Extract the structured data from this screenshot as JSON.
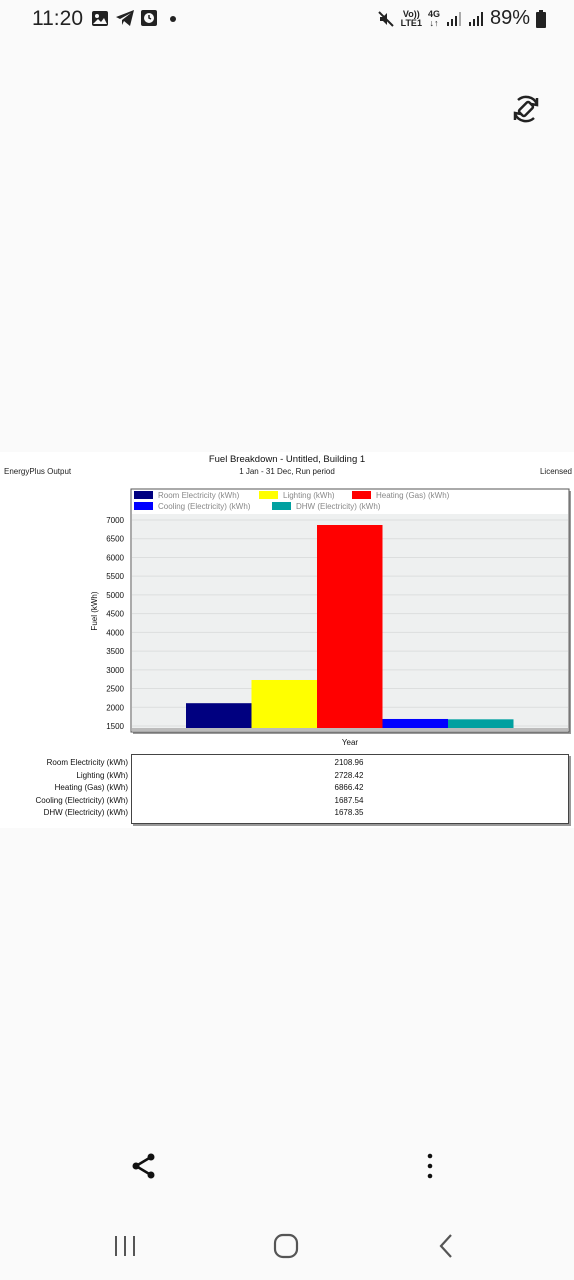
{
  "status_bar": {
    "time": "11:20",
    "network_label_top": "Vo))",
    "network_label_bottom": "LTE1",
    "network_type": "4G",
    "battery": "89%",
    "icons": [
      "gallery-icon",
      "telegram-icon",
      "clock-app-icon",
      "dot-icon",
      "mute-icon",
      "signal-icon",
      "signal-icon",
      "battery-icon"
    ]
  },
  "chart_header": {
    "title": "Fuel Breakdown - Untitled, Building 1",
    "subtitle": "1 Jan - 31 Dec, Run period",
    "left_label": "EnergyPlus Output",
    "right_label": "Licensed"
  },
  "chart_data": {
    "type": "bar",
    "title": "Fuel Breakdown - Untitled, Building 1",
    "subtitle": "1 Jan - 31 Dec, Run period",
    "xlabel": "Year",
    "ylabel": "Fuel (kWh)",
    "ylim": [
      1500,
      7000
    ],
    "yticks": [
      1500,
      2000,
      2500,
      3000,
      3500,
      4000,
      4500,
      5000,
      5500,
      6000,
      6500,
      7000
    ],
    "grid": true,
    "legend_position": "top",
    "series": [
      {
        "name": "Room Electricity (kWh)",
        "value": 2108.96,
        "color": "#000080"
      },
      {
        "name": "Lighting (kWh)",
        "value": 2728.42,
        "color": "#ffff00"
      },
      {
        "name": "Heating (Gas) (kWh)",
        "value": 6866.42,
        "color": "#ff0000"
      },
      {
        "name": "Cooling (Electricity) (kWh)",
        "value": 1687.54,
        "color": "#0000ff"
      },
      {
        "name": "DHW (Electricity) (kWh)",
        "value": 1678.35,
        "color": "#00a0a0"
      }
    ]
  },
  "table": {
    "rows": [
      {
        "label": "Room Electricity (kWh)",
        "value": "2108.96"
      },
      {
        "label": "Lighting (kWh)",
        "value": "2728.42"
      },
      {
        "label": "Heating (Gas) (kWh)",
        "value": "6866.42"
      },
      {
        "label": "Cooling (Electricity) (kWh)",
        "value": "1687.54"
      },
      {
        "label": "DHW (Electricity) (kWh)",
        "value": "1678.35"
      }
    ]
  },
  "toolbar": {
    "icons": [
      "share-icon",
      "more-vertical-icon",
      "rotate-icon"
    ]
  },
  "nav_bar": {
    "icons": [
      "recent-apps-icon",
      "home-icon",
      "back-icon"
    ]
  }
}
